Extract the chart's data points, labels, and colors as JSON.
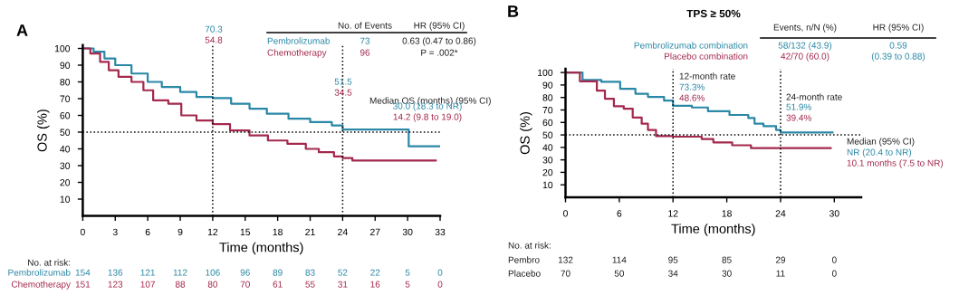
{
  "chart_data": [
    {
      "type": "step",
      "title": "A",
      "xlabel": "Time (months)",
      "ylabel": "OS (%)",
      "xlim": [
        0,
        33
      ],
      "xticks": [
        0,
        3,
        6,
        9,
        12,
        15,
        18,
        21,
        24,
        27,
        30,
        33
      ],
      "ylim": [
        0,
        102
      ],
      "yticks": [
        10,
        20,
        30,
        40,
        50,
        60,
        70,
        80,
        90,
        100
      ],
      "grid": false,
      "line_style": "solid",
      "series": [
        {
          "name": "Pembrolizumab",
          "color": "#2a88a6",
          "x": [
            0,
            1,
            2,
            3,
            4.5,
            6,
            7.3,
            9,
            10.5,
            12,
            13.7,
            15.4,
            17,
            19,
            21,
            23,
            24,
            30.1,
            33
          ],
          "values": [
            100,
            98,
            94,
            90,
            85,
            80,
            77,
            74,
            71,
            70.3,
            67,
            64,
            61,
            58,
            56,
            54,
            51.5,
            41.5,
            41.5
          ]
        },
        {
          "name": "Chemotherapy",
          "color": "#a3294d",
          "x": [
            0,
            0.7,
            1.6,
            2.4,
            3.3,
            4.5,
            5.6,
            6.5,
            7.9,
            9.1,
            10.5,
            12,
            13.6,
            15.4,
            17.1,
            18.9,
            20.6,
            21.8,
            23.2,
            24,
            24.9,
            32.6
          ],
          "values": [
            100,
            97,
            92,
            87,
            83,
            80,
            75,
            69,
            67,
            60,
            57,
            54.8,
            51,
            48,
            45,
            43,
            40,
            38,
            35.5,
            34.5,
            33,
            33
          ]
        }
      ],
      "ref_lines": [
        {
          "axis": "y",
          "value": 50,
          "color": "#000000",
          "line_style": "dotted"
        },
        {
          "axis": "x",
          "value": 12,
          "color": "#000000",
          "line_style": "dotted"
        },
        {
          "axis": "x",
          "value": 24,
          "color": "#000000",
          "line_style": "dotted"
        }
      ],
      "annotations": [
        "No. of Events",
        "HR (95% CI)",
        "73",
        "96",
        "0.63 (0.47 to 0.86)",
        "P = .002*",
        "70.3",
        "54.8",
        "51.5",
        "34.5",
        "Median OS (months) (95% CI)",
        "30.0 (18.3 to NR)",
        "14.2 (9.8 to 19.0)",
        "No. at risk:",
        "Pembrolizumab",
        "Chemotherapy",
        "154 136 121 112 106 96 89 83 52 22 5 0",
        "151 123 107 88 80 70 61 55 31 16 5 0"
      ]
    },
    {
      "type": "step",
      "title": "B",
      "subtitle": "TPS ≥ 50%",
      "xlabel": "Time (months)",
      "ylabel": "OS (%)",
      "xlim": [
        0,
        33
      ],
      "xticks": [
        0,
        6,
        12,
        18,
        24,
        30
      ],
      "ylim": [
        0,
        103
      ],
      "yticks": [
        10,
        20,
        30,
        40,
        50,
        60,
        70,
        80,
        90,
        100
      ],
      "grid": false,
      "line_style": "solid",
      "series": [
        {
          "name": "Pembrolizumab combination",
          "color": "#2a88a6",
          "x": [
            0,
            1.9,
            4,
            6.1,
            7.8,
            9.2,
            11,
            12,
            14.1,
            15.9,
            18.3,
            20.4,
            21.1,
            22.1,
            23.5,
            24,
            29.8
          ],
          "values": [
            100,
            94,
            92.5,
            87,
            83,
            80.5,
            77.5,
            73.3,
            72,
            69,
            66,
            63.5,
            59,
            57,
            54,
            51.9,
            51.9
          ]
        },
        {
          "name": "Placebo combination",
          "color": "#a3294d",
          "x": [
            0,
            1.6,
            3.5,
            4.4,
            5.4,
            6.5,
            7.5,
            8.5,
            9.2,
            10.1,
            12,
            15.2,
            16.5,
            18.6,
            20.7,
            29.6
          ],
          "values": [
            100,
            93,
            85.5,
            79,
            73,
            71,
            64,
            59,
            54,
            49,
            48.6,
            46.7,
            44,
            41.7,
            39.4,
            39.4
          ]
        }
      ],
      "ref_lines": [
        {
          "axis": "y",
          "value": 50,
          "color": "#000000",
          "line_style": "dotted"
        },
        {
          "axis": "x",
          "value": 12,
          "color": "#000000",
          "line_style": "dotted"
        },
        {
          "axis": "x",
          "value": 24,
          "color": "#000000",
          "line_style": "dotted"
        }
      ],
      "annotations": [
        "Events, n/N (%)",
        "HR (95% CI)",
        "58/132 (43.9)",
        "42/70 (60.0)",
        "0.59",
        "(0.39 to 0.88)",
        "12-month rate",
        "73.3%",
        "48.6%",
        "24-month rate",
        "51.9%",
        "39.4%",
        "Median (95% CI)",
        "NR (20.4 to NR)",
        "10.1 months (7.5 to NR)",
        "No. at risk:",
        "Pembro",
        "Placebo",
        "132 114 95 85 29 0",
        "70 50 34 30 11 0"
      ]
    }
  ]
}
